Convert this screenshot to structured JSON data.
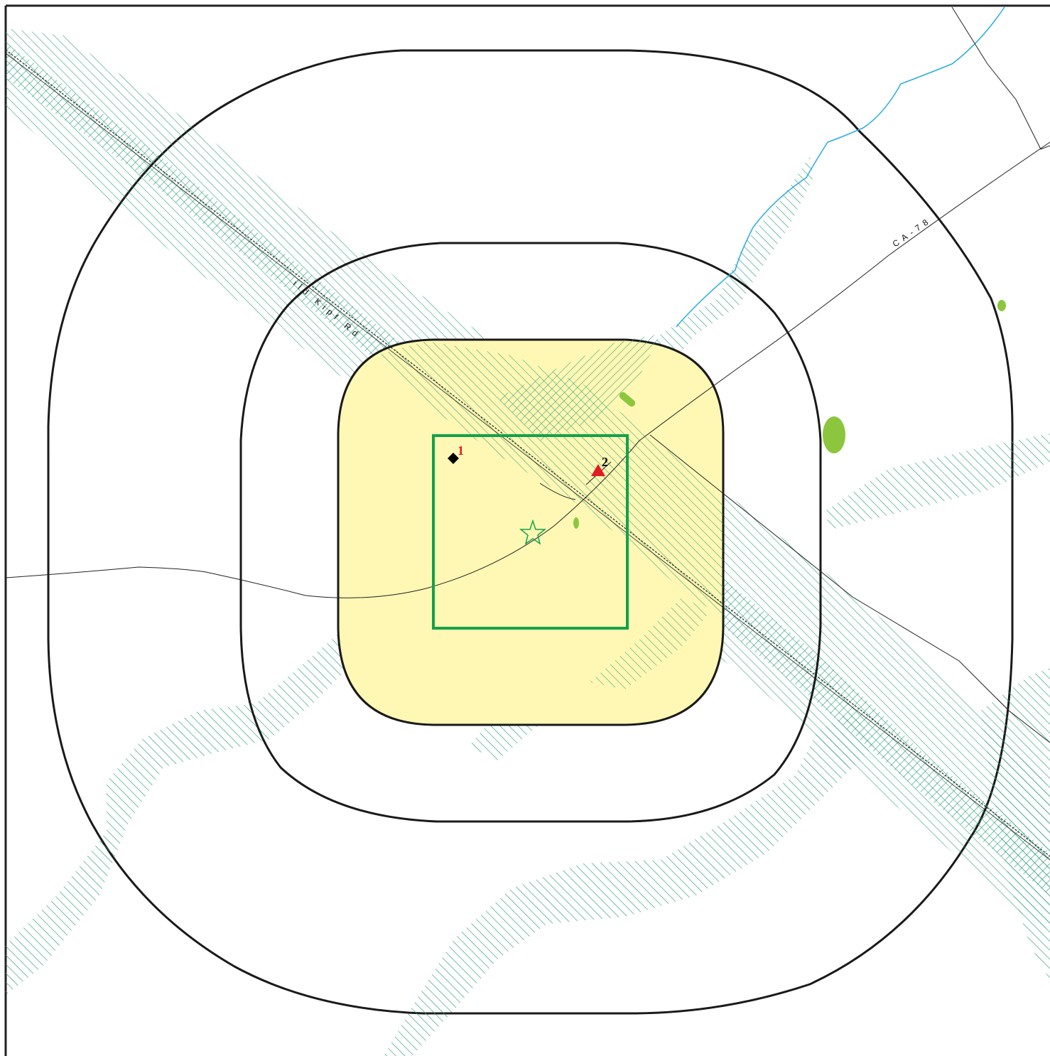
{
  "map": {
    "road_labels": {
      "highway": "CA-78",
      "rail_road": "ild Kipf Rd"
    },
    "sites": [
      {
        "label": "1",
        "symbol": "diamond-icon",
        "symbol_color": "#000000",
        "label_color": "#e31b23"
      },
      {
        "label": "2",
        "symbol": "triangle-icon",
        "symbol_color": "#e31b23",
        "label_color": "#000000"
      }
    ],
    "center_symbol": "star-icon",
    "colors": {
      "frame": "#222222",
      "buffer_ring": "#1a1a1a",
      "core_fill": "#fff8b4",
      "study_box": "#13a24a",
      "hatch": "#2a9d7c",
      "water": "#29abe2",
      "vegetation": "#8cc63f",
      "road": "#222222"
    }
  }
}
